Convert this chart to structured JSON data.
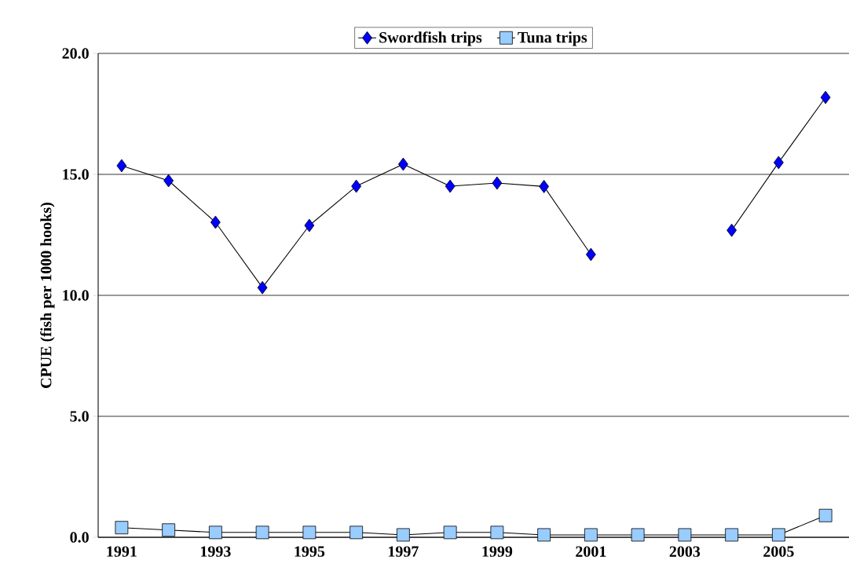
{
  "chart_data": {
    "type": "line",
    "ylabel": "CPUE (fish per 1000 hooks)",
    "x": [
      1991,
      1992,
      1993,
      1994,
      1995,
      1996,
      1997,
      1998,
      1999,
      2000,
      2001,
      2002,
      2003,
      2004,
      2005,
      2006
    ],
    "series": [
      {
        "name": "Swordfish trips",
        "color": "#0000ff",
        "marker": "diamond",
        "values": [
          15.36,
          14.74,
          13.02,
          10.32,
          12.89,
          14.51,
          15.42,
          14.51,
          14.64,
          14.5,
          11.69,
          null,
          null,
          12.69,
          15.49,
          18.18
        ]
      },
      {
        "name": "Tuna trips",
        "color": "#99ccff",
        "marker": "square",
        "values": [
          0.4,
          0.3,
          0.2,
          0.2,
          0.2,
          0.2,
          0.1,
          0.2,
          0.2,
          0.1,
          0.1,
          0.1,
          0.1,
          0.1,
          0.1,
          0.9
        ]
      }
    ],
    "xlim": [
      1990.5,
      2006.5
    ],
    "ylim": [
      0,
      20
    ],
    "xticks": [
      1991,
      1993,
      1995,
      1997,
      1999,
      2001,
      2003,
      2005
    ],
    "yticks": [
      {
        "value": 0,
        "label": "0.0"
      },
      {
        "value": 5,
        "label": "5.0"
      },
      {
        "value": 10,
        "label": "10.0"
      },
      {
        "value": 15,
        "label": "15.0"
      },
      {
        "value": 20,
        "label": "20.0"
      }
    ],
    "grid": "y",
    "legend": "top",
    "line_style": "solid"
  }
}
